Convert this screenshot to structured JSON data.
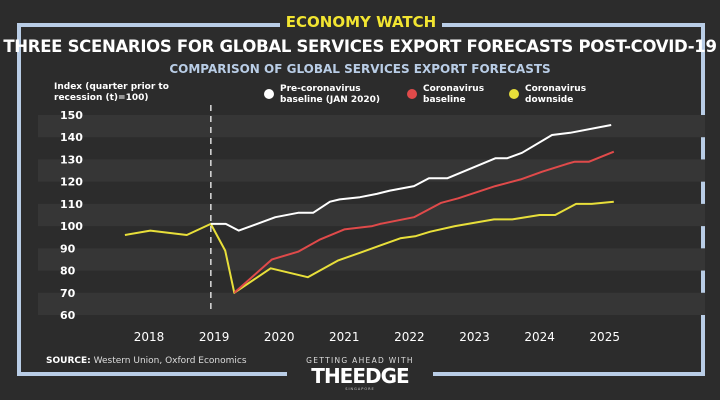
{
  "header": {
    "badge": "ECONOMY WATCH",
    "source_label": "SOURCE:",
    "source_text": " Western Union, Oxford Economics",
    "logo_tagline": "GETTING AHEAD WITH",
    "logo_name": "THEEDGE",
    "logo_sub": "SINGAPORE"
  },
  "chart_data": {
    "type": "line",
    "title": "THREE SCENARIOS FOR GLOBAL SERVICES EXPORT FORECASTS POST-COVID-19",
    "subtitle": "COMPARISON OF GLOBAL SERVICES EXPORT FORECASTS",
    "ylabel": "Index (quarter prior to recession (t)=100)",
    "xlabel": "",
    "ylim": [
      60,
      150
    ],
    "yticks": [
      60,
      70,
      80,
      90,
      100,
      110,
      120,
      130,
      140,
      150
    ],
    "xticks": [
      "2018",
      "2019",
      "2020",
      "2021",
      "2022",
      "2023",
      "2024",
      "2025"
    ],
    "xlim": [
      2017.4,
      2025.6
    ],
    "recession_marker": 2018.95,
    "series": [
      {
        "name": "Pre-coronavirus baseline (JAN 2020)",
        "color": "#ffffff",
        "x": [
          2018.95,
          2019.18,
          2019.38,
          2019.94,
          2020.29,
          2020.52,
          2020.78,
          2020.93,
          2021.24,
          2021.5,
          2021.7,
          2022.07,
          2022.3,
          2022.58,
          2023.32,
          2023.5,
          2023.73,
          2024.19,
          2024.47,
          2025.1
        ],
        "y": [
          101,
          101,
          98,
          104,
          106,
          106,
          111,
          112,
          113,
          114.5,
          116,
          118,
          121.5,
          121.5,
          130.5,
          130.5,
          133,
          141,
          142,
          145.5
        ]
      },
      {
        "name": "Coronavirus baseline",
        "color": "#e04a4a",
        "x": [
          2019.31,
          2019.89,
          2020.29,
          2020.63,
          2021.0,
          2021.43,
          2021.55,
          2022.07,
          2022.49,
          2022.75,
          2023.32,
          2023.71,
          2024.04,
          2024.42,
          2024.54,
          2024.76,
          2025.14
        ],
        "y": [
          70,
          85,
          88.5,
          94,
          98.5,
          100,
          101,
          104,
          110.5,
          112.5,
          118,
          121,
          124.5,
          128,
          129,
          129,
          133.5
        ]
      },
      {
        "name": "Coronavirus downside",
        "color": "#e8df3a",
        "x": [
          2017.63,
          2018.02,
          2018.58,
          2018.95,
          2019.17,
          2019.31,
          2019.87,
          2020.44,
          2020.9,
          2021.24,
          2021.86,
          2022.1,
          2022.32,
          2022.7,
          2023.3,
          2023.58,
          2024.0,
          2024.24,
          2024.56,
          2024.8,
          2025.14
        ],
        "y": [
          96,
          98,
          96,
          101,
          89,
          70,
          81,
          77,
          84.5,
          88,
          94.5,
          95.5,
          97.5,
          100,
          103,
          103,
          105,
          105,
          110,
          110,
          111
        ]
      }
    ]
  }
}
